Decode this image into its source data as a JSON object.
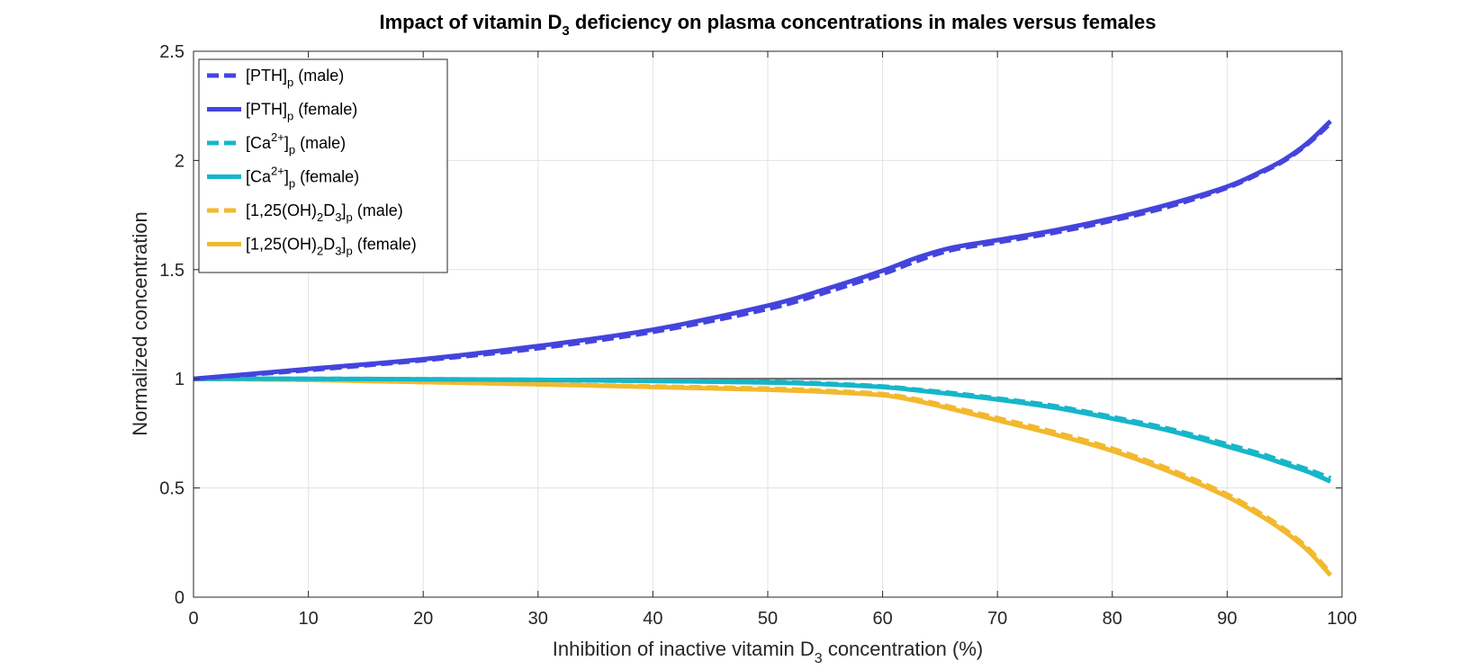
{
  "chart_data": {
    "type": "line",
    "title": {
      "pre": "Impact of vitamin D",
      "sub": "3",
      "post": " deficiency on plasma concentrations in males versus females"
    },
    "xlabel": {
      "pre": "Inhibition of inactive vitamin D",
      "sub": "3",
      "post": " concentration (%)"
    },
    "ylabel": "Normalized concentration",
    "xlim": [
      0,
      100
    ],
    "ylim": [
      0,
      2.5
    ],
    "xticks": [
      "0",
      "10",
      "20",
      "30",
      "40",
      "50",
      "60",
      "70",
      "80",
      "90",
      "100"
    ],
    "yticks": [
      "0",
      "0.5",
      "1",
      "1.5",
      "2",
      "2.5"
    ],
    "grid": true,
    "legend_position": "top-left",
    "reference_line": {
      "y": 1,
      "color": "#707070"
    },
    "colors": {
      "pth": "#4444dd",
      "ca": "#16b6c9",
      "vitd": "#f2b92e"
    },
    "x": [
      0,
      10,
      20,
      30,
      40,
      50,
      55,
      60,
      63,
      66,
      70,
      75,
      80,
      85,
      90,
      93,
      95,
      97,
      99
    ],
    "series": [
      {
        "name_parts": [
          "[PTH]",
          "p",
          " (male)"
        ],
        "color": "#4444dd",
        "dash": true,
        "values": [
          1.0,
          1.04,
          1.085,
          1.14,
          1.215,
          1.32,
          1.395,
          1.48,
          1.54,
          1.59,
          1.625,
          1.67,
          1.725,
          1.79,
          1.875,
          1.945,
          2.0,
          2.075,
          2.17
        ]
      },
      {
        "name_parts": [
          "[PTH]",
          "p",
          " (female)"
        ],
        "color": "#4444dd",
        "dash": false,
        "values": [
          1.0,
          1.045,
          1.09,
          1.15,
          1.225,
          1.335,
          1.41,
          1.495,
          1.555,
          1.6,
          1.635,
          1.68,
          1.735,
          1.8,
          1.88,
          1.95,
          2.005,
          2.08,
          2.18
        ]
      },
      {
        "name_parts": [
          "[Ca",
          "2+",
          "]",
          "p",
          " (male)"
        ],
        "color": "#16b6c9",
        "dash": true,
        "values": [
          1.0,
          1.0,
          0.998,
          0.995,
          0.99,
          0.985,
          0.978,
          0.965,
          0.95,
          0.935,
          0.91,
          0.875,
          0.825,
          0.77,
          0.7,
          0.655,
          0.62,
          0.585,
          0.545
        ]
      },
      {
        "name_parts": [
          "[Ca",
          "2+",
          "]",
          "p",
          " (female)"
        ],
        "color": "#16b6c9",
        "dash": false,
        "values": [
          1.0,
          1.0,
          0.998,
          0.995,
          0.99,
          0.983,
          0.975,
          0.962,
          0.947,
          0.93,
          0.905,
          0.868,
          0.818,
          0.762,
          0.69,
          0.645,
          0.61,
          0.575,
          0.53
        ]
      },
      {
        "name_parts": [
          "[1,25(OH)",
          "2",
          "D",
          "3",
          "]",
          "p",
          " (male)"
        ],
        "color": "#f2b92e",
        "dash": true,
        "values": [
          1.0,
          0.995,
          0.985,
          0.975,
          0.965,
          0.955,
          0.945,
          0.93,
          0.905,
          0.87,
          0.82,
          0.755,
          0.68,
          0.585,
          0.47,
          0.38,
          0.31,
          0.225,
          0.11
        ]
      },
      {
        "name_parts": [
          "[1,25(OH)",
          "2",
          "D",
          "3",
          "]",
          "p",
          " (female)"
        ],
        "color": "#f2b92e",
        "dash": false,
        "values": [
          1.0,
          0.995,
          0.985,
          0.975,
          0.962,
          0.95,
          0.94,
          0.925,
          0.898,
          0.862,
          0.81,
          0.745,
          0.67,
          0.575,
          0.46,
          0.37,
          0.3,
          0.215,
          0.1
        ]
      }
    ]
  }
}
